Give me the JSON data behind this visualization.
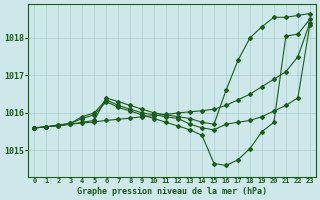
{
  "title": "Graphe pression niveau de la mer (hPa)",
  "bg_color": "#cce8e8",
  "grid_color": "#aacfcf",
  "line_color": "#1a5c1a",
  "xlim": [
    -0.5,
    23.5
  ],
  "ylim": [
    1014.3,
    1018.9
  ],
  "yticks": [
    1015,
    1016,
    1017,
    1018
  ],
  "xtick_labels": [
    "0",
    "1",
    "2",
    "3",
    "4",
    "5",
    "6",
    "7",
    "8",
    "9",
    "10",
    "11",
    "12",
    "13",
    "14",
    "15",
    "16",
    "17",
    "18",
    "19",
    "20",
    "21",
    "22",
    "23"
  ],
  "series_straight": [
    1015.6,
    1015.63,
    1015.66,
    1015.7,
    1015.73,
    1015.76,
    1015.8,
    1015.83,
    1015.86,
    1015.9,
    1015.93,
    1015.96,
    1016.0,
    1016.03,
    1016.06,
    1016.1,
    1016.2,
    1016.35,
    1016.5,
    1016.7,
    1016.9,
    1017.1,
    1017.5,
    1018.4
  ],
  "series_upper": [
    1015.6,
    1015.63,
    1015.66,
    1015.7,
    1015.75,
    1015.8,
    1016.4,
    1016.3,
    1016.2,
    1016.1,
    1016.0,
    1015.95,
    1015.9,
    1015.85,
    1015.75,
    1015.7,
    1016.6,
    1017.4,
    1018.0,
    1018.3,
    1018.55,
    1018.55,
    1018.6,
    1018.65
  ],
  "series_mid": [
    1015.6,
    1015.63,
    1015.68,
    1015.72,
    1015.9,
    1016.0,
    1016.35,
    1016.2,
    1016.1,
    1016.0,
    1015.95,
    1015.9,
    1015.85,
    1015.7,
    1015.6,
    1015.55,
    1015.7,
    1015.75,
    1015.8,
    1015.9,
    1016.05,
    1016.2,
    1016.4,
    1018.35
  ],
  "series_dip": [
    1015.6,
    1015.63,
    1015.67,
    1015.72,
    1015.85,
    1015.95,
    1016.3,
    1016.15,
    1016.05,
    1015.95,
    1015.85,
    1015.75,
    1015.65,
    1015.55,
    1015.4,
    1014.65,
    1014.6,
    1014.75,
    1015.05,
    1015.5,
    1015.75,
    1018.05,
    1018.1,
    1018.5
  ]
}
